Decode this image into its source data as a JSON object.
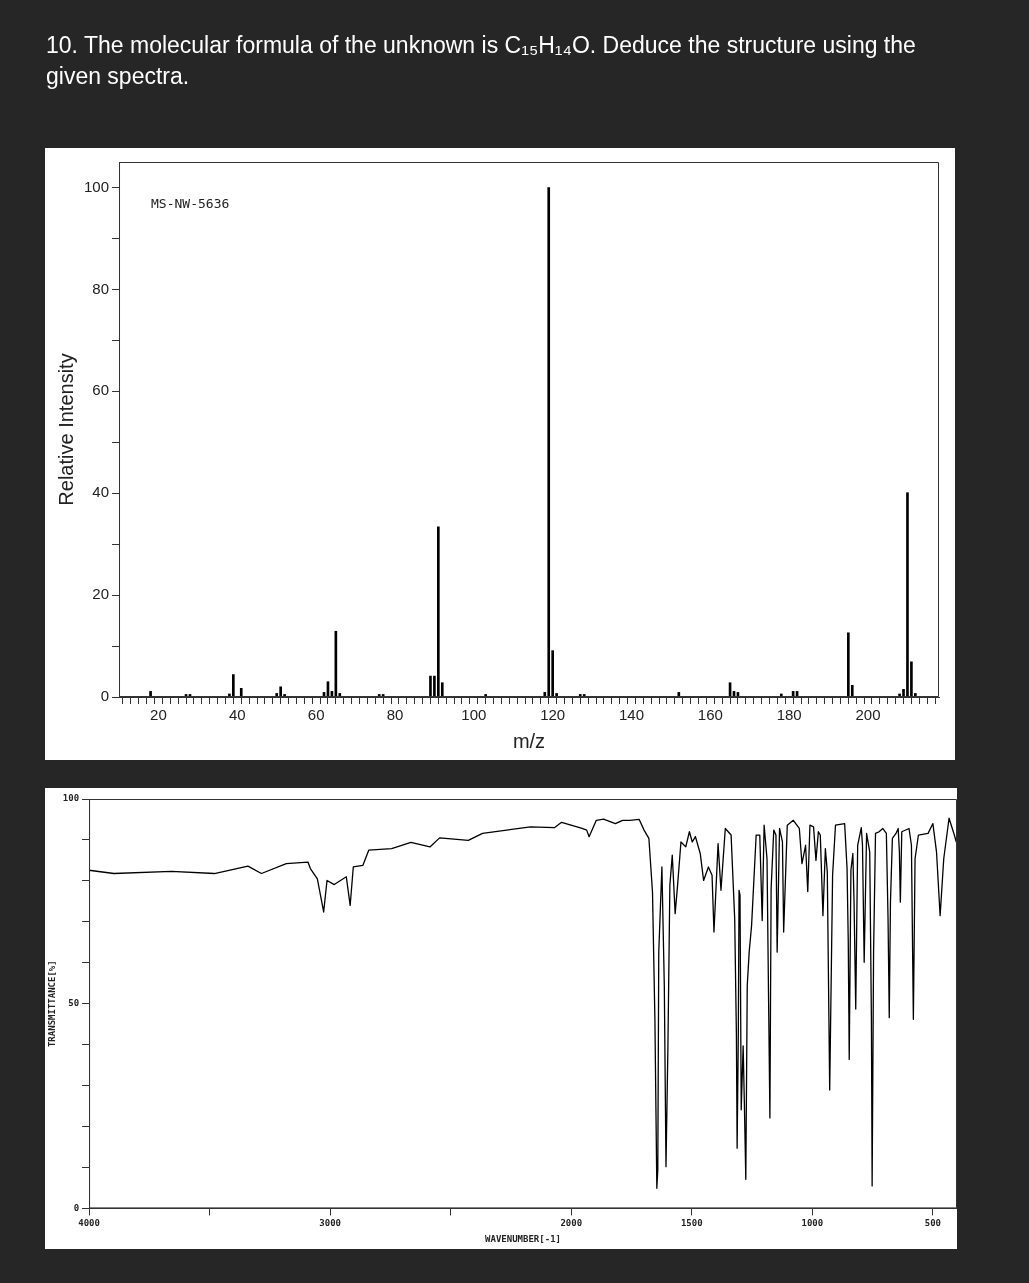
{
  "chart_data": [
    {
      "type": "bar",
      "title": "10. The molecular formula of the unknown is C₁₅H₁₄O.  Deduce the structure using the given spectra.",
      "xlabel": "m/z",
      "ylabel": "Relative Intensity",
      "annotations": [
        "MS-NW-5636"
      ],
      "color": "#000000",
      "x": [
        18,
        27,
        28,
        29,
        38,
        39,
        41,
        50,
        51,
        52,
        62,
        63,
        64,
        65,
        66,
        76,
        77,
        89,
        90,
        91,
        92,
        102,
        103,
        118,
        119,
        120,
        121,
        127,
        128,
        152,
        164,
        165,
        166,
        167,
        178,
        181,
        182,
        195,
        196,
        208,
        209,
        210,
        211,
        212
      ],
      "values": [
        1.1,
        0.5,
        0.5,
        null,
        0.6,
        4.4,
        1.7,
        0.7,
        2.0,
        0.5,
        0.9,
        3.0,
        1.1,
        12.9,
        0.7,
        0.5,
        0.5,
        4.1,
        4.1,
        33.4,
        2.8,
        null,
        0.5,
        0.9,
        100,
        9.1,
        0.7,
        0.5,
        0.5,
        0.9,
        null,
        2.8,
        1.1,
        0.9,
        0.6,
        1.1,
        1.1,
        12.6,
        2.3,
        0.6,
        1.5,
        40.1,
        6.9,
        0.7
      ],
      "xlim": [
        10,
        218
      ],
      "xticks": [
        {
          "value": 12,
          "label": null
        },
        {
          "value": 14,
          "label": null
        },
        {
          "value": 16,
          "label": null
        },
        {
          "value": 18,
          "label": null
        },
        20,
        {
          "value": 22,
          "label": null
        },
        {
          "value": 24,
          "label": null
        },
        {
          "value": 26,
          "label": null
        },
        {
          "value": 28,
          "label": null
        },
        {
          "value": 30,
          "label": null
        },
        {
          "value": 32,
          "label": null
        },
        {
          "value": 34,
          "label": null
        },
        {
          "value": 36,
          "label": null
        },
        {
          "value": 38,
          "label": null
        },
        40,
        {
          "value": 42,
          "label": null
        },
        {
          "value": 44,
          "label": null
        },
        {
          "value": 46,
          "label": null
        },
        {
          "value": 48,
          "label": null
        },
        {
          "value": 50,
          "label": null
        },
        {
          "value": 52,
          "label": null
        },
        {
          "value": 54,
          "label": null
        },
        {
          "value": 56,
          "label": null
        },
        {
          "value": 58,
          "label": null
        },
        60,
        {
          "value": 62,
          "label": null
        },
        {
          "value": 64,
          "label": null
        },
        {
          "value": 66,
          "label": null
        },
        {
          "value": 68,
          "label": null
        },
        {
          "value": 70,
          "label": null
        },
        {
          "value": 72,
          "label": null
        },
        {
          "value": 74,
          "label": null
        },
        {
          "value": 76,
          "label": null
        },
        {
          "value": 78,
          "label": null
        },
        80,
        {
          "value": 82,
          "label": null
        },
        {
          "value": 84,
          "label": null
        },
        {
          "value": 86,
          "label": null
        },
        {
          "value": 88,
          "label": null
        },
        {
          "value": 90,
          "label": null
        },
        {
          "value": 92,
          "label": null
        },
        {
          "value": 94,
          "label": null
        },
        {
          "value": 96,
          "label": null
        },
        {
          "value": 98,
          "label": null
        },
        100,
        {
          "value": 102,
          "label": null
        },
        {
          "value": 104,
          "label": null
        },
        {
          "value": 106,
          "label": null
        },
        {
          "value": 108,
          "label": null
        },
        {
          "value": 110,
          "label": null
        },
        {
          "value": 112,
          "label": null
        },
        {
          "value": 114,
          "label": null
        },
        {
          "value": 116,
          "label": null
        },
        {
          "value": 118,
          "label": null
        },
        120,
        {
          "value": 122,
          "label": null
        },
        {
          "value": 124,
          "label": null
        },
        {
          "value": 126,
          "label": null
        },
        {
          "value": 128,
          "label": null
        },
        {
          "value": 130,
          "label": null
        },
        {
          "value": 132,
          "label": null
        },
        {
          "value": 134,
          "label": null
        },
        {
          "value": 136,
          "label": null
        },
        {
          "value": 138,
          "label": null
        },
        140,
        {
          "value": 142,
          "label": null
        },
        {
          "value": 144,
          "label": null
        },
        {
          "value": 146,
          "label": null
        },
        {
          "value": 148,
          "label": null
        },
        {
          "value": 150,
          "label": null
        },
        {
          "value": 152,
          "label": null
        },
        {
          "value": 154,
          "label": null
        },
        {
          "value": 156,
          "label": null
        },
        {
          "value": 158,
          "label": null
        },
        160,
        {
          "value": 162,
          "label": null
        },
        {
          "value": 164,
          "label": null
        },
        {
          "value": 166,
          "label": null
        },
        {
          "value": 168,
          "label": null
        },
        {
          "value": 170,
          "label": null
        },
        {
          "value": 172,
          "label": null
        },
        {
          "value": 174,
          "label": null
        },
        {
          "value": 176,
          "label": null
        },
        {
          "value": 178,
          "label": null
        },
        180,
        {
          "value": 182,
          "label": null
        },
        {
          "value": 184,
          "label": null
        },
        {
          "value": 186,
          "label": null
        },
        {
          "value": 188,
          "label": null
        },
        {
          "value": 190,
          "label": null
        },
        {
          "value": 192,
          "label": null
        },
        {
          "value": 194,
          "label": null
        },
        {
          "value": 196,
          "label": null
        },
        {
          "value": 198,
          "label": null
        },
        200,
        {
          "value": 202,
          "label": null
        },
        {
          "value": 204,
          "label": null
        },
        {
          "value": 206,
          "label": null
        },
        {
          "value": 208,
          "label": null
        },
        {
          "value": 210,
          "label": null
        },
        {
          "value": 212,
          "label": null
        },
        {
          "value": 214,
          "label": null
        },
        {
          "value": 216,
          "label": null
        }
      ],
      "ylim": [
        0,
        105
      ],
      "yticks": [
        0,
        {
          "value": 10,
          "label": null
        },
        20,
        {
          "value": 30,
          "label": null
        },
        40,
        {
          "value": 50,
          "label": null
        },
        60,
        {
          "value": 70,
          "label": null
        },
        80,
        {
          "value": 90,
          "label": null
        },
        100
      ]
    },
    {
      "type": "line",
      "xlabel": "WAVENUMBER[-1]",
      "ylabel": "TRANSMITTANCE[%]",
      "color": "#000000",
      "x": [
        4000,
        3897,
        3658,
        3480,
        3341,
        3285,
        3182,
        3092,
        3082,
        3053,
        3027,
        3013,
        2983,
        2933,
        2917,
        2904,
        2864,
        2840,
        2745,
        2665,
        2586,
        2546,
        2427,
        2368,
        2268,
        2169,
        2070,
        2040,
        1955,
        1936,
        1926,
        1896,
        1866,
        1817,
        1787,
        1757,
        1718,
        1698,
        1678,
        1663,
        1653,
        1645,
        1641,
        1637,
        1624,
        1614,
        1607,
        1599,
        1591,
        1581,
        1569,
        1559,
        1545,
        1525,
        1510,
        1498,
        1485,
        1465,
        1451,
        1431,
        1416,
        1408,
        1391,
        1379,
        1361,
        1337,
        1322,
        1315,
        1312,
        1307,
        1304,
        1300,
        1295,
        1287,
        1282,
        1276,
        1270,
        1262,
        1252,
        1233,
        1218,
        1208,
        1200,
        1188,
        1176,
        1171,
        1160,
        1151,
        1146,
        1136,
        1124,
        1119,
        1104,
        1079,
        1054,
        1043,
        1028,
        1019,
        1010,
        995,
        985,
        975,
        967,
        956,
        946,
        938,
        928,
        916,
        904,
        866,
        856,
        851,
        847,
        840,
        832,
        827,
        820,
        812,
        797,
        792,
        785,
        775,
        762,
        755,
        752,
        746,
        738,
        723,
        708,
        693,
        686,
        681,
        676,
        668,
        653,
        644,
        639,
        635,
        629,
        599,
        589,
        581,
        574,
        560,
        520,
        500,
        485,
        470,
        455,
        433,
        411,
        403
      ],
      "values": [
        82.6,
        81.8,
        82.3,
        81.8,
        83.6,
        81.8,
        84.2,
        84.6,
        83.0,
        80.5,
        72.4,
        80.1,
        79.1,
        81.0,
        74.0,
        83.4,
        83.8,
        87.5,
        87.9,
        89.4,
        88.3,
        90.5,
        89.9,
        91.6,
        92.4,
        93.2,
        93.0,
        94.3,
        92.8,
        92.4,
        90.8,
        94.8,
        95.1,
        94.0,
        94.8,
        94.8,
        95.0,
        92.4,
        90.4,
        77.3,
        46.2,
        4.9,
        9.4,
        62.6,
        83.4,
        54.4,
        10.2,
        39.7,
        78.9,
        86.3,
        72.0,
        78.9,
        89.5,
        88.3,
        92.0,
        89.5,
        90.8,
        86.7,
        80.1,
        83.4,
        81.4,
        67.5,
        89.1,
        77.7,
        92.8,
        91.2,
        70.7,
        42.5,
        14.7,
        42.9,
        77.7,
        76.5,
        24.1,
        39.7,
        25.8,
        7.1,
        54.4,
        62.6,
        69.1,
        91.2,
        91.2,
        70.3,
        93.6,
        85.4,
        22.1,
        78.1,
        92.4,
        91.2,
        62.6,
        92.8,
        89.5,
        67.5,
        93.6,
        94.8,
        92.8,
        84.2,
        88.7,
        77.4,
        93.6,
        93.2,
        85.0,
        92.0,
        91.2,
        71.5,
        87.9,
        82.2,
        28.9,
        81.4,
        93.6,
        94.0,
        83.0,
        65.0,
        36.4,
        82.6,
        86.7,
        74.8,
        48.7,
        88.7,
        93.0,
        88.7,
        60.1,
        91.6,
        87.1,
        46.2,
        5.5,
        62.6,
        91.6,
        92.0,
        92.8,
        91.6,
        70.7,
        46.6,
        74.8,
        90.4,
        91.6,
        92.8,
        87.1,
        74.8,
        92.0,
        92.8,
        88.7,
        46.2,
        85.4,
        91.2,
        91.6,
        94.0,
        87.1,
        71.5,
        85.4,
        95.3,
        91.2,
        89.5
      ],
      "xlim": [
        4000,
        400
      ],
      "xticks": [
        4000,
        {
          "value": 3500,
          "label": null
        },
        3000,
        {
          "value": 2500,
          "label": null
        },
        2000,
        1500,
        1000,
        500
      ],
      "ylim": [
        0,
        100
      ],
      "yticks": [
        0,
        {
          "value": 10,
          "label": null
        },
        {
          "value": 20,
          "label": null
        },
        {
          "value": 30,
          "label": null
        },
        {
          "value": 40,
          "label": null
        },
        50,
        {
          "value": 60,
          "label": null
        },
        {
          "value": 70,
          "label": null
        },
        {
          "value": 80,
          "label": null
        },
        {
          "value": 90,
          "label": null
        },
        100
      ]
    }
  ]
}
